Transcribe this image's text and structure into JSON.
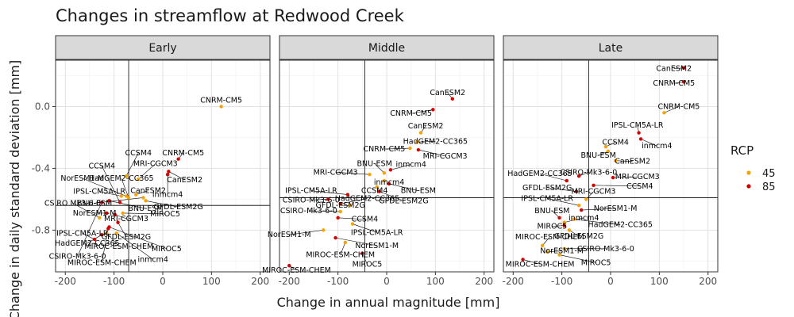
{
  "chart_data": {
    "type": "scatter",
    "title": "Changes in streamflow at Redwood Creek",
    "xlabel": "Change in annual magnitude [mm]",
    "ylabel": "Change in daily standard deviation [mm]",
    "xlim": [
      -220,
      220
    ],
    "ylim": [
      -1.07,
      0.3
    ],
    "x_ticks": [
      -200,
      -100,
      0,
      100,
      200
    ],
    "y_ticks": [
      0.0,
      -0.4,
      -0.8
    ],
    "y_tick_labels": [
      "0.0",
      "-0.4",
      "-0.8"
    ],
    "grid": true,
    "legend": {
      "title": "RCP",
      "position": "right",
      "entries": [
        {
          "label": "45",
          "color": "#f5a300"
        },
        {
          "label": "85",
          "color": "#d40000"
        }
      ]
    },
    "colors": {
      "45": "#f5a300",
      "85": "#d40000"
    },
    "panels": [
      {
        "name": "Early",
        "ref_x": -70,
        "ref_y": -0.64,
        "points": [
          {
            "model": "CNRM-CM5",
            "rcp": "45",
            "x": 120,
            "y": 0.0
          },
          {
            "model": "CNRM-CM5",
            "rcp": "85",
            "x": 32,
            "y": -0.34
          },
          {
            "model": "CCSM4",
            "rcp": "45",
            "x": -75,
            "y": -0.45
          },
          {
            "model": "CCSM4",
            "rcp": "85",
            "x": -88,
            "y": -0.62
          },
          {
            "model": "MRI-CGCM3",
            "rcp": "45",
            "x": -50,
            "y": -0.47
          },
          {
            "model": "MRI-CGCM3",
            "rcp": "85",
            "x": -98,
            "y": -0.7
          },
          {
            "model": "CanESM2",
            "rcp": "85",
            "x": 12,
            "y": -0.42
          },
          {
            "model": "CanESM2",
            "rcp": "45",
            "x": -55,
            "y": -0.57
          },
          {
            "model": "NorESM1-M",
            "rcp": "45",
            "x": -75,
            "y": -0.58
          },
          {
            "model": "NorESM1-M",
            "rcp": "85",
            "x": -115,
            "y": -0.69
          },
          {
            "model": "HadGEM2-CC365",
            "rcp": "45",
            "x": -70,
            "y": -0.59
          },
          {
            "model": "HadGEM2-CC365",
            "rcp": "85",
            "x": -125,
            "y": -0.83
          },
          {
            "model": "IPSL-CM5A-LR",
            "rcp": "45",
            "x": -85,
            "y": -0.58
          },
          {
            "model": "IPSL-CM5A-LR",
            "rcp": "85",
            "x": -140,
            "y": -0.86
          },
          {
            "model": "inmcm4",
            "rcp": "85",
            "x": 10,
            "y": -0.44
          },
          {
            "model": "inmcm4",
            "rcp": "45",
            "x": -95,
            "y": -0.82
          },
          {
            "model": "BNU-ESM",
            "rcp": "45",
            "x": -40,
            "y": -0.59
          },
          {
            "model": "BNU-ESM",
            "rcp": "85",
            "x": -110,
            "y": -0.61
          },
          {
            "model": "GFDL-ESM2G",
            "rcp": "45",
            "x": -35,
            "y": -0.61
          },
          {
            "model": "GFDL-ESM2G",
            "rcp": "85",
            "x": -92,
            "y": -0.75
          },
          {
            "model": "MIROC5",
            "rcp": "45",
            "x": -82,
            "y": -0.69
          },
          {
            "model": "MIROC5",
            "rcp": "85",
            "x": -110,
            "y": -0.78
          },
          {
            "model": "CSIRO-Mk3-6-0",
            "rcp": "45",
            "x": -130,
            "y": -0.72
          },
          {
            "model": "CSIRO-Mk3-6-0",
            "rcp": "85",
            "x": -125,
            "y": -0.62
          },
          {
            "model": "MIROC-ESM-CHEM",
            "rcp": "45",
            "x": -115,
            "y": -0.82
          },
          {
            "model": "MIROC-ESM-CHEM",
            "rcp": "85",
            "x": -112,
            "y": -0.79
          }
        ],
        "labels": [
          {
            "model": "CNRM-CM5",
            "x": 120,
            "y": 0.04
          },
          {
            "model": "CNRM-CM5",
            "x": 42,
            "y": -0.3
          },
          {
            "model": "CCSM4",
            "x": -50,
            "y": -0.3
          },
          {
            "model": "CCSM4",
            "x": -125,
            "y": -0.385
          },
          {
            "model": "MRI-CGCM3",
            "x": -15,
            "y": -0.37
          },
          {
            "model": "MRI-CGCM3",
            "x": -75,
            "y": -0.725
          },
          {
            "model": "CanESM2",
            "x": 45,
            "y": -0.475
          },
          {
            "model": "CanESM2",
            "x": -30,
            "y": -0.545
          },
          {
            "model": "NorESM1-M",
            "x": -165,
            "y": -0.465
          },
          {
            "model": "NorESM1-M",
            "x": -140,
            "y": -0.69
          },
          {
            "model": "HadGEM2-CC365",
            "x": -85,
            "y": -0.465
          },
          {
            "model": "HadGEM2-CC365",
            "x": -155,
            "y": -0.885
          },
          {
            "model": "IPSL-CM5A-LR",
            "x": -130,
            "y": -0.55
          },
          {
            "model": "IPSL-CM5A-LR",
            "x": -165,
            "y": -0.82
          },
          {
            "model": "inmcm4",
            "x": 10,
            "y": -0.57
          },
          {
            "model": "inmcm4",
            "x": -20,
            "y": -0.99
          },
          {
            "model": "BNU-ESM",
            "x": -140,
            "y": -0.625
          },
          {
            "model": "BNU-ESM",
            "x": -35,
            "y": -0.66
          },
          {
            "model": "GFDL-ESM2G",
            "x": 32,
            "y": -0.65
          },
          {
            "model": "GFDL-ESM2G",
            "x": -75,
            "y": -0.845
          },
          {
            "model": "MIROC5",
            "x": 5,
            "y": -0.695
          },
          {
            "model": "MIROC5",
            "x": 8,
            "y": -0.92
          },
          {
            "model": "CSIRO Mk3-6-0",
            "x": -185,
            "y": -0.625
          },
          {
            "model": "CSIRO-Mk3-6-0",
            "x": -175,
            "y": -0.97
          },
          {
            "model": "MIROC-ESM-CHEM",
            "x": -90,
            "y": -0.905
          },
          {
            "model": "MIROC-ESM-CHEM",
            "x": -125,
            "y": -1.01
          }
        ]
      },
      {
        "name": "Middle",
        "ref_x": -45,
        "ref_y": -0.59,
        "points": [
          {
            "model": "CanESM2",
            "rcp": "85",
            "x": 135,
            "y": 0.05
          },
          {
            "model": "CNRM-CM5",
            "rcp": "85",
            "x": 95,
            "y": -0.02
          },
          {
            "model": "CanESM2",
            "rcp": "45",
            "x": 70,
            "y": -0.17
          },
          {
            "model": "HadGEM2-CC365",
            "rcp": "45",
            "x": 62,
            "y": -0.23
          },
          {
            "model": "CNRM-CM5",
            "rcp": "45",
            "x": 48,
            "y": -0.27
          },
          {
            "model": "MRI-CGCM3",
            "rcp": "85",
            "x": 65,
            "y": -0.28
          },
          {
            "model": "inmcm4",
            "rcp": "85",
            "x": 8,
            "y": -0.41
          },
          {
            "model": "BNU-ESM",
            "rcp": "45",
            "x": -5,
            "y": -0.43
          },
          {
            "model": "MRI-CGCM3",
            "rcp": "45",
            "x": -35,
            "y": -0.44
          },
          {
            "model": "inmcm4",
            "rcp": "45",
            "x": -5,
            "y": -0.48
          },
          {
            "model": "BNU-ESM",
            "rcp": "85",
            "x": 5,
            "y": -0.5
          },
          {
            "model": "CCSM4",
            "rcp": "45",
            "x": -20,
            "y": -0.52
          },
          {
            "model": "GFDL-ESM2G",
            "rcp": "85",
            "x": -15,
            "y": -0.55
          },
          {
            "model": "IPSL-CM5A-LR",
            "rcp": "85",
            "x": -80,
            "y": -0.57
          },
          {
            "model": "HadGEM2-CC365",
            "rcp": "85",
            "x": -95,
            "y": -0.63
          },
          {
            "model": "CSIRO-Mk3-6-0",
            "rcp": "85",
            "x": -120,
            "y": -0.6
          },
          {
            "model": "GFDL-ESM2G",
            "rcp": "45",
            "x": -75,
            "y": -0.64
          },
          {
            "model": "CSIRO-Mk3-6-0",
            "rcp": "45",
            "x": -95,
            "y": -0.68
          },
          {
            "model": "CCSM4",
            "rcp": "85",
            "x": -100,
            "y": -0.72
          },
          {
            "model": "IPSL-CM5A-LR",
            "rcp": "45",
            "x": -70,
            "y": -0.76
          },
          {
            "model": "NorESM1-M",
            "rcp": "85",
            "x": -105,
            "y": -0.85
          },
          {
            "model": "NorESM1-M",
            "rcp": "45",
            "x": -130,
            "y": -0.8
          },
          {
            "model": "MIROC-ESM-CHEM",
            "rcp": "45",
            "x": -85,
            "y": -0.88
          },
          {
            "model": "MIROC5",
            "rcp": "85",
            "x": -50,
            "y": -0.95
          },
          {
            "model": "MIROC-ESM-CHEM",
            "rcp": "85",
            "x": -200,
            "y": -1.03
          }
        ],
        "labels": [
          {
            "model": "CanESM2",
            "x": 125,
            "y": 0.09
          },
          {
            "model": "CNRM-CM5",
            "x": 50,
            "y": -0.045
          },
          {
            "model": "CanESM2",
            "x": 80,
            "y": -0.125
          },
          {
            "model": "HadGEM2-CC365",
            "x": 100,
            "y": -0.225
          },
          {
            "model": "CNRM-CM5",
            "x": -5,
            "y": -0.275
          },
          {
            "model": "MRI-CGCM3",
            "x": 120,
            "y": -0.32
          },
          {
            "model": "inmcm4",
            "x": 50,
            "y": -0.375
          },
          {
            "model": "BNU-ESM",
            "x": -25,
            "y": -0.37
          },
          {
            "model": "MRI-CGCM3",
            "x": -105,
            "y": -0.425
          },
          {
            "model": "inmcm4",
            "x": 5,
            "y": -0.49
          },
          {
            "model": "BNU-ESM",
            "x": 65,
            "y": -0.545
          },
          {
            "model": "CCSM4",
            "x": -25,
            "y": -0.545
          },
          {
            "model": "GFDL-ESM2G",
            "x": 35,
            "y": -0.61
          },
          {
            "model": "IPSL-CM5A-LR",
            "x": -155,
            "y": -0.545
          },
          {
            "model": "HadGEM2-CC365",
            "x": -40,
            "y": -0.595
          },
          {
            "model": "CSIRO-Mk3-6-0",
            "x": -155,
            "y": -0.605
          },
          {
            "model": "GFDL-ESM2G",
            "x": -95,
            "y": -0.64
          },
          {
            "model": "CSIRO-Mk3-6-0",
            "x": -160,
            "y": -0.675
          },
          {
            "model": "CCSM4",
            "x": -45,
            "y": -0.73
          },
          {
            "model": "IPSL-CM5A-LR",
            "x": -20,
            "y": -0.815
          },
          {
            "model": "NorESM1-M",
            "x": -20,
            "y": -0.9
          },
          {
            "model": "NorESM1-M",
            "x": -200,
            "y": -0.83
          },
          {
            "model": "MIROC-ESM-CHEM",
            "x": -95,
            "y": -0.96
          },
          {
            "model": "MIROC5",
            "x": -40,
            "y": -1.02
          },
          {
            "model": "MIROC-ESM-CHEM",
            "x": -185,
            "y": -1.06
          }
        ]
      },
      {
        "name": "Late",
        "ref_x": -45,
        "ref_y": -0.59,
        "points": [
          {
            "model": "CanESM2",
            "rcp": "85",
            "x": 150,
            "y": 0.25
          },
          {
            "model": "CNRM-CM5",
            "rcp": "85",
            "x": 150,
            "y": 0.16
          },
          {
            "model": "CNRM-CM5",
            "rcp": "45",
            "x": 110,
            "y": -0.04
          },
          {
            "model": "IPSL-CM5A-LR",
            "rcp": "85",
            "x": 58,
            "y": -0.17
          },
          {
            "model": "inmcm4",
            "rcp": "85",
            "x": 62,
            "y": -0.21
          },
          {
            "model": "CCSM4",
            "rcp": "45",
            "x": -10,
            "y": -0.26
          },
          {
            "model": "BNU-ESM",
            "rcp": "45",
            "x": -5,
            "y": -0.29
          },
          {
            "model": "CanESM2",
            "rcp": "45",
            "x": 10,
            "y": -0.35
          },
          {
            "model": "MRI-CGCM3",
            "rcp": "85",
            "x": 5,
            "y": -0.46
          },
          {
            "model": "CSIRO-Mk3-6-0",
            "rcp": "85",
            "x": -65,
            "y": -0.45
          },
          {
            "model": "HadGEM2-CC365",
            "rcp": "85",
            "x": -90,
            "y": -0.48
          },
          {
            "model": "CCSM4",
            "rcp": "85",
            "x": -35,
            "y": -0.51
          },
          {
            "model": "GFDL-ESM2G",
            "rcp": "85",
            "x": -70,
            "y": -0.55
          },
          {
            "model": "MRI-CGCM3",
            "rcp": "45",
            "x": -50,
            "y": -0.6
          },
          {
            "model": "IPSL-CM5A-LR",
            "rcp": "45",
            "x": -65,
            "y": -0.64
          },
          {
            "model": "NorESM1-M",
            "rcp": "85",
            "x": -60,
            "y": -0.67
          },
          {
            "model": "BNU-ESM",
            "rcp": "85",
            "x": -105,
            "y": -0.72
          },
          {
            "model": "inmcm4",
            "rcp": "45",
            "x": -95,
            "y": -0.75
          },
          {
            "model": "HadGEM2-CC365",
            "rcp": "45",
            "x": -75,
            "y": -0.73
          },
          {
            "model": "MIROC5",
            "rcp": "85",
            "x": -95,
            "y": -0.77
          },
          {
            "model": "GFDL-ESM2G",
            "rcp": "45",
            "x": -85,
            "y": -0.8
          },
          {
            "model": "MIROC-ESM-CHEM",
            "rcp": "45",
            "x": -140,
            "y": -0.9
          },
          {
            "model": "NorESM1-M",
            "rcp": "45",
            "x": -130,
            "y": -0.94
          },
          {
            "model": "CSIRO-Mk3-6-0",
            "rcp": "45",
            "x": -95,
            "y": -0.92
          },
          {
            "model": "MIROC5",
            "rcp": "45",
            "x": -105,
            "y": -0.96
          },
          {
            "model": "MIROC-ESM-CHEM",
            "rcp": "85",
            "x": -180,
            "y": -0.99
          }
        ],
        "labels": [
          {
            "model": "CanESM2",
            "x": 130,
            "y": 0.245
          },
          {
            "model": "CNRM-CM5",
            "x": 130,
            "y": 0.15
          },
          {
            "model": "CNRM-CM5",
            "x": 140,
            "y": 0.0
          },
          {
            "model": "IPSL-CM5A-LR",
            "x": 55,
            "y": -0.12
          },
          {
            "model": "inmcm4",
            "x": 95,
            "y": -0.255
          },
          {
            "model": "CCSM4",
            "x": 10,
            "y": -0.23
          },
          {
            "model": "BNU-ESM",
            "x": -25,
            "y": -0.315
          },
          {
            "model": "CanESM2",
            "x": 45,
            "y": -0.355
          },
          {
            "model": "MRI-CGCM3",
            "x": 55,
            "y": -0.455
          },
          {
            "model": "CSIRO-Mk3-6-0",
            "x": -45,
            "y": -0.425
          },
          {
            "model": "HadGEM2-CC365",
            "x": -145,
            "y": -0.435
          },
          {
            "model": "CCSM4",
            "x": 60,
            "y": -0.515
          },
          {
            "model": "GFDL-ESM2G",
            "x": -130,
            "y": -0.525
          },
          {
            "model": "MRI-CGCM3",
            "x": -35,
            "y": -0.55
          },
          {
            "model": "IPSL-CM5A-LR",
            "x": -130,
            "y": -0.595
          },
          {
            "model": "NorESM1-M",
            "x": 10,
            "y": -0.66
          },
          {
            "model": "BNU-ESM",
            "x": -120,
            "y": -0.675
          },
          {
            "model": "inmcm4",
            "x": -55,
            "y": -0.72
          },
          {
            "model": "HadGEM2-CC365",
            "x": 20,
            "y": -0.765
          },
          {
            "model": "MIROC5",
            "x": -120,
            "y": -0.775
          },
          {
            "model": "GFDL-ESM2G",
            "x": -65,
            "y": -0.84
          },
          {
            "model": "MIROC-ESM-CHEM",
            "x": -125,
            "y": -0.845
          },
          {
            "model": "NorESM1-M",
            "x": -100,
            "y": -0.935
          },
          {
            "model": "CSIRO-Mk3-6-0",
            "x": -10,
            "y": -0.92
          },
          {
            "model": "MIROC5",
            "x": -30,
            "y": -1.01
          },
          {
            "model": "MIROC-ESM-CHEM",
            "x": -145,
            "y": -1.02
          }
        ]
      }
    ]
  }
}
